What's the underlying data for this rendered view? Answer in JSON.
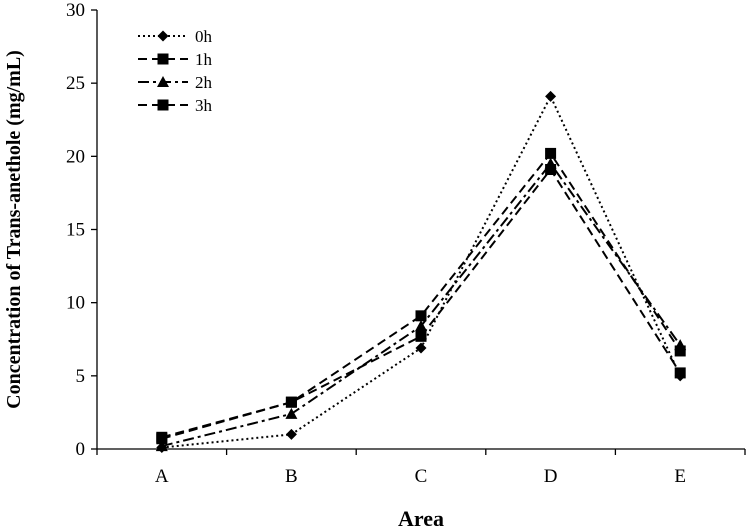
{
  "chart_data": {
    "type": "line",
    "title": "",
    "xlabel": "Area",
    "ylabel": "Concentration of Trans-anethole (mg/mL)",
    "categories": [
      "A",
      "B",
      "C",
      "D",
      "E"
    ],
    "ylim": [
      0,
      30
    ],
    "yticks": [
      "0",
      "5",
      "10",
      "15",
      "20",
      "25",
      "30"
    ],
    "grid": false,
    "legend_position": "top-left",
    "series": [
      {
        "name": "0h",
        "values": [
          0.1,
          1.0,
          6.9,
          24.1,
          5.0
        ],
        "marker": "diamond",
        "dash": "dotted",
        "color": "#000000"
      },
      {
        "name": "1h",
        "values": [
          0.7,
          3.2,
          7.7,
          19.1,
          5.2
        ],
        "marker": "square",
        "dash": "dashed",
        "color": "#000000"
      },
      {
        "name": "2h",
        "values": [
          0.2,
          2.4,
          8.4,
          19.5,
          7.1
        ],
        "marker": "triangle",
        "dash": "dash-dot",
        "color": "#000000"
      },
      {
        "name": "3h",
        "values": [
          0.8,
          3.2,
          9.1,
          20.2,
          6.7
        ],
        "marker": "square",
        "dash": "dashed",
        "color": "#000000"
      }
    ]
  }
}
